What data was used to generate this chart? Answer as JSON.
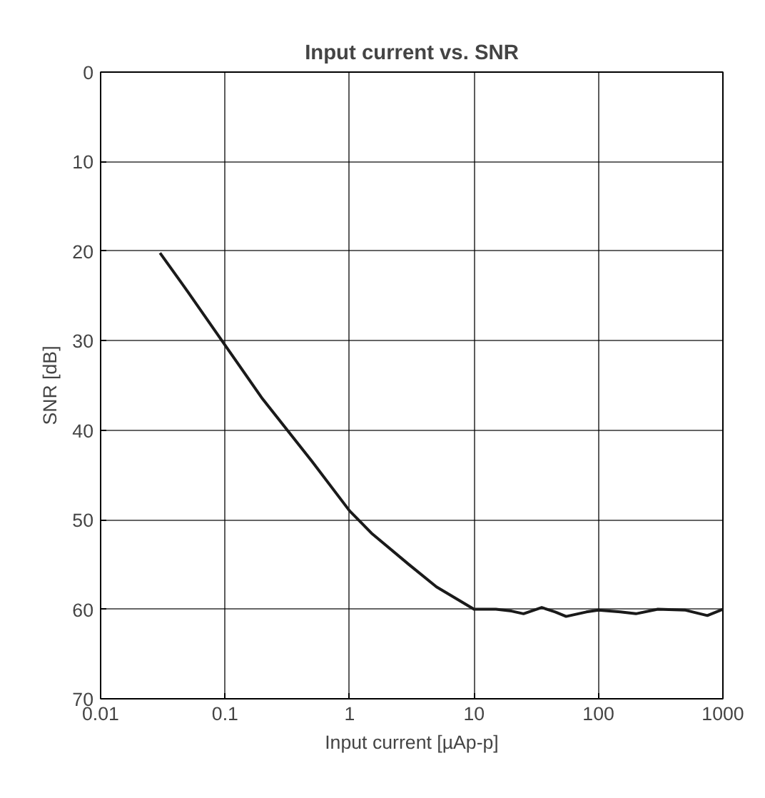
{
  "chart_data": {
    "type": "line",
    "title": "Input current vs. SNR",
    "xlabel": "Input current [µAp-p]",
    "ylabel": "SNR [dB]",
    "log": "x",
    "xlim": [
      0.01,
      1000
    ],
    "xticks": [
      0.01,
      0.1,
      1,
      10,
      100,
      1000
    ],
    "ylim": [
      70,
      0
    ],
    "yticks": [
      0,
      10,
      20,
      30,
      40,
      50,
      60,
      70
    ],
    "grid": true,
    "series": [
      {
        "color": "#1a1a1a",
        "x": [
          0.03,
          0.05,
          0.1,
          0.2,
          0.5,
          1,
          1.5,
          3,
          5,
          10,
          15,
          20,
          25,
          35,
          45,
          55,
          80,
          100,
          150,
          200,
          300,
          500,
          750,
          1000
        ],
        "values": [
          20.2,
          24.5,
          30.5,
          36.5,
          43.5,
          49,
          51.5,
          55,
          57.5,
          60,
          60,
          60.2,
          60.5,
          59.8,
          60.3,
          60.8,
          60.3,
          60.1,
          60.3,
          60.5,
          60,
          60.1,
          60.7,
          60
        ]
      }
    ]
  }
}
